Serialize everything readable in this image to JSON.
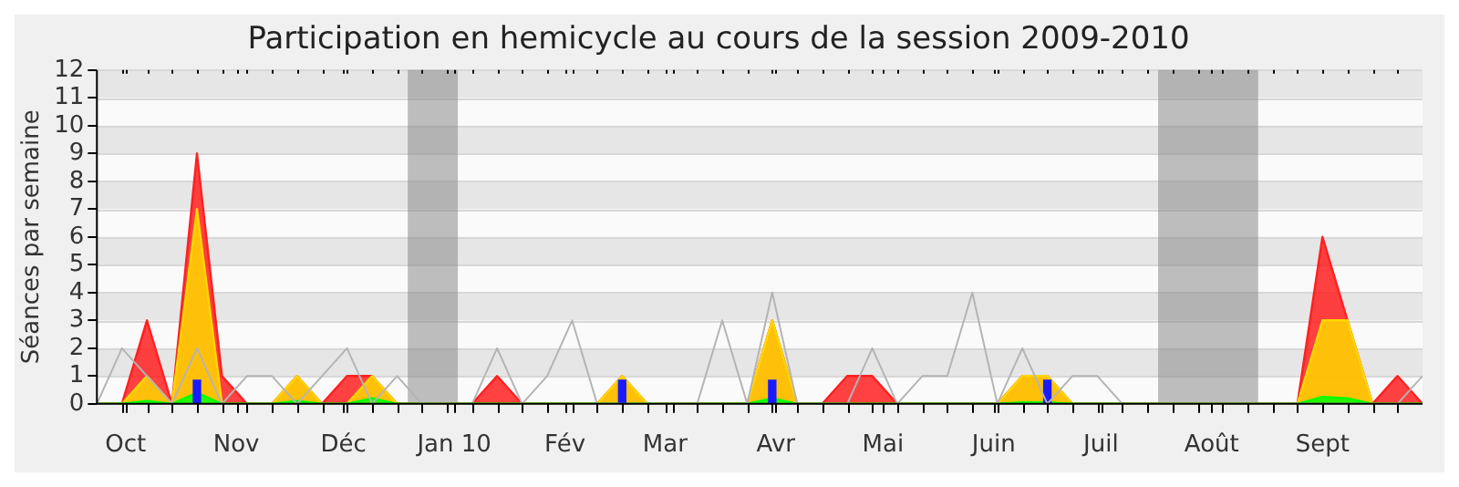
{
  "chart_data": {
    "type": "area",
    "title": "Participation en hemicycle au cours de la session 2009-2010",
    "ylabel": "Séances par semaine",
    "x": [
      "2009-09-23",
      "2009-09-30",
      "2009-10-07",
      "2009-10-14",
      "2009-10-21",
      "2009-10-28",
      "2009-11-04",
      "2009-11-11",
      "2009-11-18",
      "2009-11-25",
      "2009-12-02",
      "2009-12-09",
      "2009-12-16",
      "2009-12-23",
      "2009-12-30",
      "2010-01-06",
      "2010-01-13",
      "2010-01-20",
      "2010-01-27",
      "2010-02-03",
      "2010-02-10",
      "2010-02-17",
      "2010-02-24",
      "2010-03-03",
      "2010-03-10",
      "2010-03-17",
      "2010-03-24",
      "2010-03-31",
      "2010-04-07",
      "2010-04-14",
      "2010-04-21",
      "2010-04-28",
      "2010-05-05",
      "2010-05-12",
      "2010-05-19",
      "2010-05-26",
      "2010-06-02",
      "2010-06-09",
      "2010-06-16",
      "2010-06-23",
      "2010-06-30",
      "2010-07-07",
      "2010-07-14",
      "2010-07-21",
      "2010-07-28",
      "2010-08-04",
      "2010-08-11",
      "2010-08-18",
      "2010-08-25",
      "2010-09-01",
      "2010-09-08",
      "2010-09-15",
      "2010-09-22",
      "2010-09-29"
    ],
    "xlim": [
      "2009-09-23",
      "2010-09-29"
    ],
    "xticks": [
      {
        "value": "2009-09-30",
        "label": null
      },
      {
        "value": "2009-10-01",
        "label": "Oct"
      },
      {
        "value": "2009-10-07",
        "label": null
      },
      {
        "value": "2009-10-14",
        "label": null
      },
      {
        "value": "2009-10-21",
        "label": null
      },
      {
        "value": "2009-10-28",
        "label": null
      },
      {
        "value": "2009-11-01",
        "label": "Nov"
      },
      {
        "value": "2009-11-04",
        "label": null
      },
      {
        "value": "2009-11-11",
        "label": null
      },
      {
        "value": "2009-11-18",
        "label": null
      },
      {
        "value": "2009-11-25",
        "label": null
      },
      {
        "value": "2009-12-01",
        "label": "Déc"
      },
      {
        "value": "2009-12-02",
        "label": null
      },
      {
        "value": "2009-12-09",
        "label": null
      },
      {
        "value": "2009-12-16",
        "label": null
      },
      {
        "value": "2009-12-23",
        "label": null
      },
      {
        "value": "2009-12-30",
        "label": null
      },
      {
        "value": "2010-01-01",
        "label": "Jan 10"
      },
      {
        "value": "2010-01-06",
        "label": null
      },
      {
        "value": "2010-01-13",
        "label": null
      },
      {
        "value": "2010-01-20",
        "label": null
      },
      {
        "value": "2010-01-27",
        "label": null
      },
      {
        "value": "2010-02-01",
        "label": "Fév"
      },
      {
        "value": "2010-02-03",
        "label": null
      },
      {
        "value": "2010-02-10",
        "label": null
      },
      {
        "value": "2010-02-17",
        "label": null
      },
      {
        "value": "2010-02-24",
        "label": null
      },
      {
        "value": "2010-03-01",
        "label": "Mar"
      },
      {
        "value": "2010-03-03",
        "label": null
      },
      {
        "value": "2010-03-10",
        "label": null
      },
      {
        "value": "2010-03-17",
        "label": null
      },
      {
        "value": "2010-03-24",
        "label": null
      },
      {
        "value": "2010-03-31",
        "label": null
      },
      {
        "value": "2010-04-01",
        "label": "Avr"
      },
      {
        "value": "2010-04-07",
        "label": null
      },
      {
        "value": "2010-04-14",
        "label": null
      },
      {
        "value": "2010-04-21",
        "label": null
      },
      {
        "value": "2010-04-28",
        "label": null
      },
      {
        "value": "2010-05-01",
        "label": "Mai"
      },
      {
        "value": "2010-05-05",
        "label": null
      },
      {
        "value": "2010-05-12",
        "label": null
      },
      {
        "value": "2010-05-19",
        "label": null
      },
      {
        "value": "2010-05-26",
        "label": null
      },
      {
        "value": "2010-06-01",
        "label": "Juin"
      },
      {
        "value": "2010-06-02",
        "label": null
      },
      {
        "value": "2010-06-09",
        "label": null
      },
      {
        "value": "2010-06-16",
        "label": null
      },
      {
        "value": "2010-06-23",
        "label": null
      },
      {
        "value": "2010-06-30",
        "label": null
      },
      {
        "value": "2010-07-01",
        "label": "Juil"
      },
      {
        "value": "2010-07-07",
        "label": null
      },
      {
        "value": "2010-07-14",
        "label": null
      },
      {
        "value": "2010-07-21",
        "label": null
      },
      {
        "value": "2010-07-28",
        "label": null
      },
      {
        "value": "2010-08-01",
        "label": "Août"
      },
      {
        "value": "2010-08-04",
        "label": null
      },
      {
        "value": "2010-08-11",
        "label": null
      },
      {
        "value": "2010-08-18",
        "label": null
      },
      {
        "value": "2010-08-25",
        "label": null
      },
      {
        "value": "2010-09-01",
        "label": "Sept"
      },
      {
        "value": "2010-09-08",
        "label": null
      },
      {
        "value": "2010-09-15",
        "label": null
      },
      {
        "value": "2010-09-22",
        "label": null
      }
    ],
    "ylim": [
      0,
      12
    ],
    "yticks": [
      0,
      1,
      2,
      3,
      4,
      5,
      6,
      7,
      8,
      9,
      10,
      11,
      12
    ],
    "grid": "y",
    "legend": false,
    "marker": "none",
    "bands": [
      {
        "axis": "x",
        "from": "2009-12-19",
        "to": "2010-01-02",
        "color": "#808080"
      },
      {
        "axis": "x",
        "from": "2010-07-17",
        "to": "2010-08-14",
        "color": "#808080"
      }
    ],
    "series": [
      {
        "color": "#ff2020",
        "values": [
          0,
          0,
          3,
          0,
          9,
          1,
          0,
          0,
          1,
          0,
          1,
          1,
          0,
          0,
          0,
          0,
          1,
          0,
          0,
          0,
          0,
          1,
          0,
          0,
          0,
          0,
          0,
          3,
          0,
          0,
          1,
          1,
          0,
          0,
          0,
          0,
          0,
          1,
          1,
          0,
          0,
          0,
          0,
          0,
          0,
          0,
          0,
          0,
          0,
          6,
          3,
          0,
          1,
          0
        ]
      },
      {
        "color": "#ffd700",
        "values": [
          0,
          0,
          1,
          0,
          7,
          0,
          0,
          0,
          1,
          0,
          0,
          1,
          0,
          0,
          0,
          0,
          0,
          0,
          0,
          0,
          0,
          1,
          0,
          0,
          0,
          0,
          0,
          3,
          0,
          0,
          0,
          0,
          0,
          0,
          0,
          0,
          0,
          1,
          1,
          0,
          0,
          0,
          0,
          0,
          0,
          0,
          0,
          0,
          0,
          3,
          3,
          0,
          0,
          0
        ]
      },
      {
        "color": "#00ff00",
        "values": [
          0,
          0,
          0.1,
          0,
          0.4,
          0,
          0,
          0,
          0.1,
          0,
          0,
          0.2,
          0,
          0,
          0,
          0,
          0,
          0,
          0,
          0,
          0,
          0,
          0,
          0,
          0,
          0,
          0,
          0.2,
          0,
          0,
          0,
          0,
          0,
          0,
          0,
          0,
          0,
          0.05,
          0.05,
          0,
          0,
          0,
          0,
          0,
          0,
          0,
          0,
          0,
          0,
          0.25,
          0.2,
          0,
          0,
          0
        ]
      },
      {
        "type": "bar",
        "color": "#1a1aff",
        "values": [
          0,
          0,
          0,
          0,
          0.85,
          0,
          0,
          0,
          0,
          0,
          0,
          0,
          0,
          0,
          0,
          0,
          0,
          0,
          0,
          0,
          0,
          0.85,
          0,
          0,
          0,
          0,
          0,
          0.85,
          0,
          0,
          0,
          0,
          0,
          0,
          0,
          0,
          0,
          0,
          0.85,
          0,
          0,
          0,
          0,
          0,
          0,
          0,
          0,
          0,
          0,
          0,
          0,
          0,
          0,
          0
        ]
      },
      {
        "type": "line",
        "color": "#b4b4b4",
        "values": [
          0,
          2,
          1,
          0,
          2,
          0,
          1,
          1,
          0,
          1,
          2,
          0,
          1,
          0,
          0,
          0,
          2,
          0,
          1,
          3,
          0,
          0,
          0,
          0,
          0,
          3,
          0,
          4,
          0,
          0,
          0,
          2,
          0,
          1,
          1,
          4,
          0,
          2,
          0,
          1,
          1,
          0,
          0,
          0,
          0,
          0,
          0,
          0,
          0,
          0,
          0,
          0,
          0,
          1
        ]
      }
    ]
  }
}
